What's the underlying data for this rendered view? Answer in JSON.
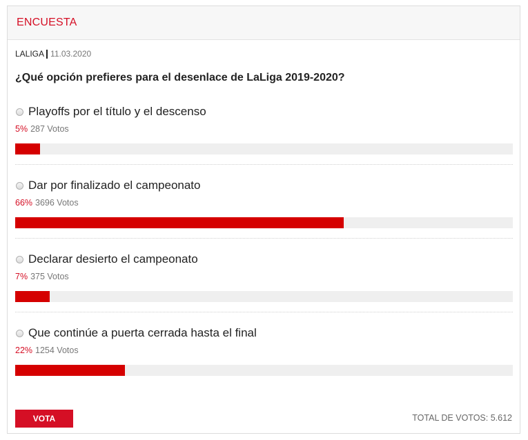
{
  "header": {
    "title": "ENCUESTA"
  },
  "meta": {
    "source": "LALIGA",
    "date": "11.03.2020"
  },
  "question": "¿Qué opción prefieres para el desenlace de LaLiga 2019-2020?",
  "options": [
    {
      "label": "Playoffs por el título y el descenso",
      "percent_text": "5%",
      "votes_text": "287 Votos",
      "share": 0.05
    },
    {
      "label": "Dar por finalizado el campeonato",
      "percent_text": "66%",
      "votes_text": "3696 Votos",
      "share": 0.66
    },
    {
      "label": "Declarar desierto el campeonato",
      "percent_text": "7%",
      "votes_text": "375 Votos",
      "share": 0.07
    },
    {
      "label": "Que continúe a puerta cerrada hasta el final",
      "percent_text": "22%",
      "votes_text": "1254 Votos",
      "share": 0.22
    }
  ],
  "footer": {
    "vote_label": "VOTA",
    "total_text": "TOTAL DE VOTOS: 5.612"
  },
  "colors": {
    "accent": "#d50f25",
    "bar": "#d50000",
    "track": "#efefef"
  }
}
